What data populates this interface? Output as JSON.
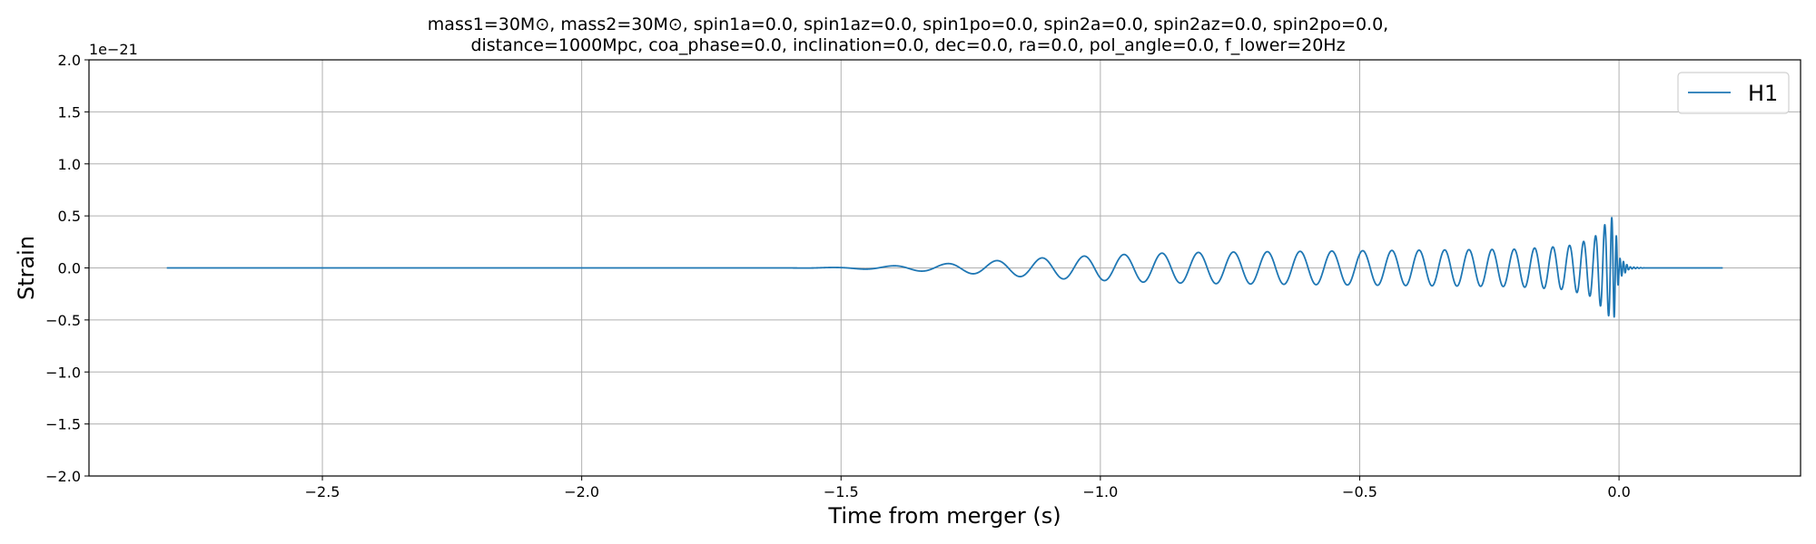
{
  "chart_data": {
    "type": "line",
    "title_line1": "mass1=30M⊙, mass2=30M⊙, spin1a=0.0, spin1az=0.0, spin1po=0.0, spin2a=0.0, spin2az=0.0, spin2po=0.0,",
    "title_line2": "distance=1000Mpc, coa_phase=0.0, inclination=0.0, dec=0.0, ra=0.0, pol_angle=0.0, f_lower=20Hz",
    "xlabel": "Time from merger (s)",
    "ylabel": "Strain",
    "y_offset_label": "1e−21",
    "xlim": [
      -2.95,
      0.35
    ],
    "ylim": [
      -2.0,
      2.0
    ],
    "x_ticks": [
      -2.5,
      -2.0,
      -1.5,
      -1.0,
      -0.5,
      0.0
    ],
    "x_tick_labels": [
      "−2.5",
      "−2.0",
      "−1.5",
      "−1.0",
      "−0.5",
      "0.0"
    ],
    "y_ticks": [
      -2.0,
      -1.5,
      -1.0,
      -0.5,
      0.0,
      0.5,
      1.0,
      1.5,
      2.0
    ],
    "y_tick_labels": [
      "−2.0",
      "−1.5",
      "−1.0",
      "−0.5",
      "0.0",
      "0.5",
      "1.0",
      "1.5",
      "2.0"
    ],
    "grid": true,
    "legend_position": "top-right",
    "series": [
      {
        "name": "H1",
        "color": "#1f77b4",
        "x_start": -2.8,
        "x_end": 0.2,
        "envelope": [
          {
            "t": -2.8,
            "a": 0.0
          },
          {
            "t": -1.6,
            "a": 0.0
          },
          {
            "t": -1.5,
            "a": 0.005
          },
          {
            "t": -1.4,
            "a": 0.02
          },
          {
            "t": -1.3,
            "a": 0.04
          },
          {
            "t": -1.2,
            "a": 0.07
          },
          {
            "t": -1.1,
            "a": 0.1
          },
          {
            "t": -1.0,
            "a": 0.12
          },
          {
            "t": -0.9,
            "a": 0.14
          },
          {
            "t": -0.8,
            "a": 0.15
          },
          {
            "t": -0.6,
            "a": 0.16
          },
          {
            "t": -0.4,
            "a": 0.17
          },
          {
            "t": -0.2,
            "a": 0.18
          },
          {
            "t": -0.1,
            "a": 0.21
          },
          {
            "t": -0.05,
            "a": 0.28
          },
          {
            "t": -0.02,
            "a": 0.46
          },
          {
            "t": -0.01,
            "a": 0.5
          },
          {
            "t": 0.0,
            "a": 0.1
          },
          {
            "t": 0.02,
            "a": 0.01
          },
          {
            "t": 0.05,
            "a": 0.0
          },
          {
            "t": 0.2,
            "a": 0.0
          }
        ],
        "frequency_hz": [
          {
            "t": -1.5,
            "f": 8
          },
          {
            "t": -1.0,
            "f": 13
          },
          {
            "t": -0.5,
            "f": 17
          },
          {
            "t": -0.2,
            "f": 24
          },
          {
            "t": -0.1,
            "f": 32
          },
          {
            "t": -0.05,
            "f": 45
          },
          {
            "t": -0.02,
            "f": 70
          },
          {
            "t": 0.0,
            "f": 150
          }
        ]
      }
    ]
  }
}
